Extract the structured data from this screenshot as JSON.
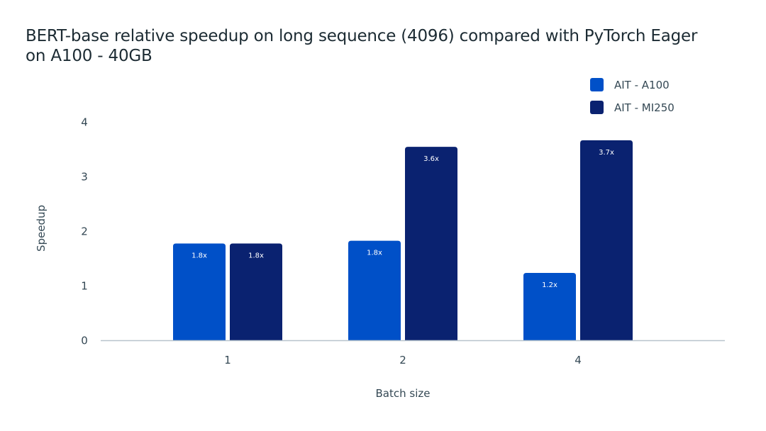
{
  "chart_data": {
    "type": "bar",
    "title_lines": [
      "BERT-base relative speedup on long sequence (4096) compared with PyTorch Eager",
      "on A100 - 40GB"
    ],
    "xlabel": "Batch size",
    "ylabel": "Speedup",
    "categories": [
      "1",
      "2",
      "4"
    ],
    "ylim": [
      0,
      4
    ],
    "yticks": [
      0,
      1,
      2,
      3,
      4
    ],
    "grid": false,
    "legend_position": "top-right",
    "series": [
      {
        "name": "AIT - A100",
        "color": "#0050c8",
        "values": [
          1.78,
          1.83,
          1.24
        ],
        "labels": [
          "1.8x",
          "1.8x",
          "1.2x"
        ]
      },
      {
        "name": "AIT - MI250",
        "color": "#0a2270",
        "values": [
          1.78,
          3.55,
          3.67
        ],
        "labels": [
          "1.8x",
          "3.6x",
          "3.7x"
        ]
      }
    ]
  }
}
